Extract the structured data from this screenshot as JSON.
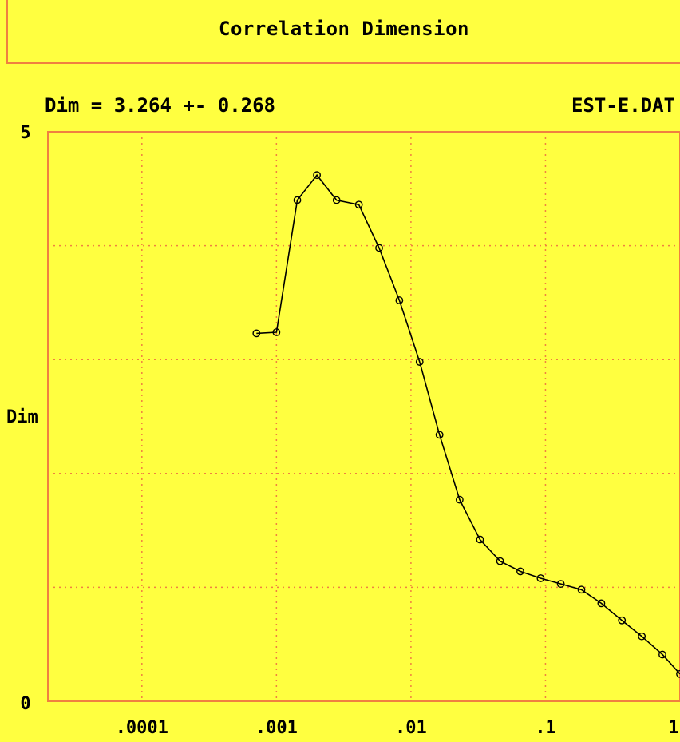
{
  "chart_data": {
    "type": "line",
    "title": "Correlation Dimension",
    "subtitle": "Dim = 3.264 +- 0.268",
    "file_label": "EST-E.DAT",
    "ylabel": "Dim",
    "xlabel": "",
    "x_scale": "log",
    "xlim": [
      2e-05,
      1
    ],
    "ylim": [
      0,
      5
    ],
    "grid": true,
    "x_ticks": [
      {
        "value": 0.0001,
        "label": ".0001"
      },
      {
        "value": 0.001,
        "label": ".001"
      },
      {
        "value": 0.01,
        "label": ".01"
      },
      {
        "value": 0.1,
        "label": ".1"
      },
      {
        "value": 1,
        "label": "1"
      }
    ],
    "y_ticks": [
      {
        "value": 0,
        "label": "0"
      },
      {
        "value": 5,
        "label": "5"
      }
    ],
    "y_gridlines": [
      1,
      2,
      3,
      4
    ],
    "series": [
      {
        "color": "#000000",
        "marker": "circle",
        "x": [
          0.00071,
          0.001,
          0.00143,
          0.002,
          0.0028,
          0.0041,
          0.0058,
          0.0082,
          0.0116,
          0.0163,
          0.023,
          0.0326,
          0.046,
          0.065,
          0.092,
          0.13,
          0.185,
          0.26,
          0.37,
          0.52,
          0.74,
          1.0
        ],
        "y": [
          3.23,
          3.24,
          4.4,
          4.62,
          4.4,
          4.36,
          3.98,
          3.52,
          2.98,
          2.34,
          1.77,
          1.42,
          1.23,
          1.14,
          1.08,
          1.03,
          0.98,
          0.86,
          0.71,
          0.57,
          0.41,
          0.24
        ]
      }
    ]
  },
  "colors": {
    "background": "#ffff40",
    "frame": "#f08040",
    "grid": "#f08040",
    "line": "#000000"
  }
}
